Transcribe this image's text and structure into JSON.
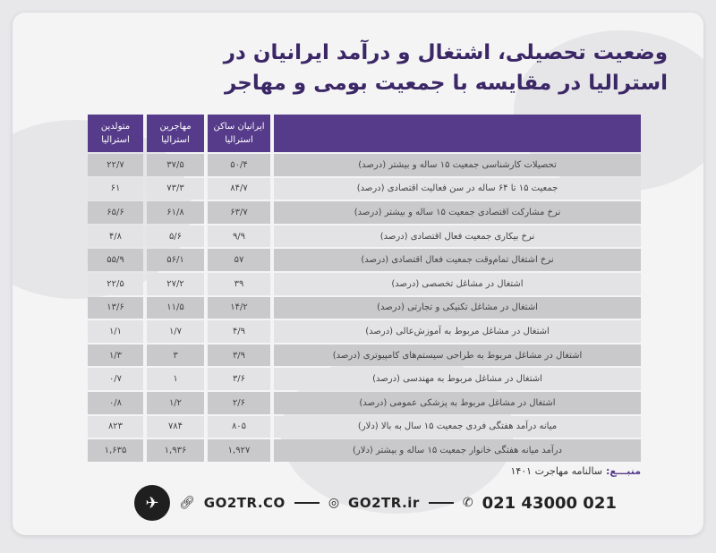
{
  "title": {
    "line1": "وضعیت تحصیلی، اشتغال و درآمد ایرانیان در",
    "line2": "استرالیا در مقایسه با جمعیت بومی و مهاجر"
  },
  "table": {
    "headers": {
      "iranians": "ایرانیان ساکن استرالیا",
      "immigrants": "مهاجرین استرالیا",
      "natives": "متولدین استرالیا",
      "indicator": ""
    },
    "rows": [
      {
        "label": "تحصیلات کارشناسی جمعیت ۱۵ ساله و بیشتر (درصد)",
        "iranians": "۵۰/۴",
        "immigrants": "۳۷/۵",
        "natives": "۲۲/۷"
      },
      {
        "label": "جمعیت ۱۵ تا ۶۴ ساله در سن فعالیت اقتصادی (درصد)",
        "iranians": "۸۴/۷",
        "immigrants": "۷۳/۳",
        "natives": "۶۱"
      },
      {
        "label": "نرخ مشارکت اقتصادی جمعیت ۱۵ ساله و بیشتر (درصد)",
        "iranians": "۶۳/۷",
        "immigrants": "۶۱/۸",
        "natives": "۶۵/۶"
      },
      {
        "label": "نرخ بیکاری جمعیت فعال اقتصادی (درصد)",
        "iranians": "۹/۹",
        "immigrants": "۵/۶",
        "natives": "۴/۸"
      },
      {
        "label": "نرخ اشتغال تمام‌وقت جمعیت فعال اقتصادی (درصد)",
        "iranians": "۵۷",
        "immigrants": "۵۶/۱",
        "natives": "۵۵/۹"
      },
      {
        "label": "اشتغال در مشاغل تخصصی (درصد)",
        "iranians": "۳۹",
        "immigrants": "۲۷/۲",
        "natives": "۲۲/۵"
      },
      {
        "label": "اشتغال در مشاغل تکنیکی و تجارتی (درصد)",
        "iranians": "۱۴/۲",
        "immigrants": "۱۱/۵",
        "natives": "۱۳/۶"
      },
      {
        "label": "اشتغال در مشاغل مربوط به آموزش‌عالی (درصد)",
        "iranians": "۴/۹",
        "immigrants": "۱/۷",
        "natives": "۱/۱"
      },
      {
        "label": "اشتغال در مشاغل مربوط به طراحی سیستم‌های کامپیوتری (درصد)",
        "iranians": "۳/۹",
        "immigrants": "۳",
        "natives": "۱/۳"
      },
      {
        "label": "اشتغال در مشاغل مربوط به مهندسی (درصد)",
        "iranians": "۳/۶",
        "immigrants": "۱",
        "natives": "۰/۷"
      },
      {
        "label": "اشتغال در مشاغل مربوط به پزشکی عمومی (درصد)",
        "iranians": "۲/۶",
        "immigrants": "۱/۲",
        "natives": "۰/۸"
      },
      {
        "label": "میانه درآمد هفتگی فردی جمعیت ۱۵ سال به بالا (دلار)",
        "iranians": "۸۰۵",
        "immigrants": "۷۸۴",
        "natives": "۸۲۳"
      },
      {
        "label": "درآمد میانه هفتگی خانوار جمعیت ۱۵ ساله و بیشتر (دلار)",
        "iranians": "۱,۹۲۷",
        "immigrants": "۱,۹۳۶",
        "natives": "۱,۶۳۵"
      }
    ]
  },
  "source": {
    "label": "منبـــع:",
    "text": "سالنامه مهاجرت ۱۴۰۱"
  },
  "footer": {
    "website": "GO2TR.CO",
    "instagram": "GO2TR.ir",
    "phone": "021 43000 021",
    "icons": [
      "logo-icon",
      "link-icon",
      "instagram-icon",
      "phone-icon"
    ]
  },
  "colors": {
    "header": "#563b8a",
    "title": "#3b2766",
    "row_dark": "#c9c9cb",
    "row_light": "#e3e3e5"
  }
}
